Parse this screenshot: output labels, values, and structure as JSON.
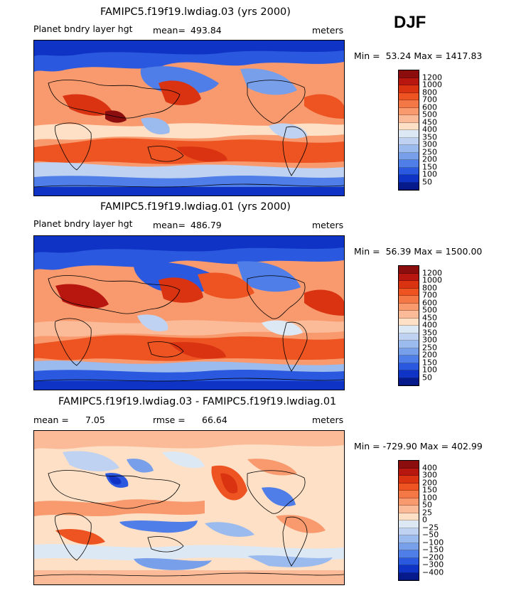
{
  "season": "DJF",
  "panels": [
    {
      "title": "FAMIPC5.f19f19.lwdiag.03 (yrs 2000)",
      "variable": "Planet bndry layer hgt",
      "stat_label": "mean=",
      "stat_value": "493.84",
      "units": "meters",
      "min_label": "Min =",
      "min_value": "53.24",
      "max_label": "Max =",
      "max_value": "1417.83",
      "legend": {
        "labels": [
          "1200",
          "1000",
          "800",
          "700",
          "600",
          "500",
          "450",
          "400",
          "350",
          "300",
          "250",
          "200",
          "150",
          "100",
          "50"
        ],
        "colors": [
          "#8c0d0d",
          "#b8170f",
          "#d93311",
          "#ed5422",
          "#f47746",
          "#f89a6e",
          "#fbbb98",
          "#fde0c6",
          "#dde8f5",
          "#bfd2f1",
          "#9bbaee",
          "#779fea",
          "#4f7ee8",
          "#2a58de",
          "#0f33c4",
          "#061a8c"
        ]
      }
    },
    {
      "title": "FAMIPC5.f19f19.lwdiag.01 (yrs 2000)",
      "variable": "Planet bndry layer hgt",
      "stat_label": "mean=",
      "stat_value": "486.79",
      "units": "meters",
      "min_label": "Min =",
      "min_value": "56.39",
      "max_label": "Max =",
      "max_value": "1500.00",
      "legend": {
        "labels": [
          "1200",
          "1000",
          "800",
          "700",
          "600",
          "500",
          "450",
          "400",
          "350",
          "300",
          "250",
          "200",
          "150",
          "100",
          "50"
        ],
        "colors": [
          "#8c0d0d",
          "#b8170f",
          "#d93311",
          "#ed5422",
          "#f47746",
          "#f89a6e",
          "#fbbb98",
          "#fde0c6",
          "#dde8f5",
          "#bfd2f1",
          "#9bbaee",
          "#779fea",
          "#4f7ee8",
          "#2a58de",
          "#0f33c4",
          "#061a8c"
        ]
      }
    },
    {
      "title": "FAMIPC5.f19f19.lwdiag.03 - FAMIPC5.f19f19.lwdiag.01",
      "mean_label": "mean =",
      "mean_value": "7.05",
      "rmse_label": "rmse =",
      "rmse_value": "66.64",
      "units": "meters",
      "min_label": "Min =",
      "min_value": "-729.90",
      "max_label": "Max =",
      "max_value": "402.99",
      "legend": {
        "labels": [
          "400",
          "300",
          "200",
          "150",
          "100",
          "50",
          "25",
          "0",
          "−25",
          "−50",
          "−100",
          "−150",
          "−200",
          "−300",
          "−400"
        ],
        "colors": [
          "#8c0d0d",
          "#b8170f",
          "#d93311",
          "#ed5422",
          "#f47746",
          "#f89a6e",
          "#fbbb98",
          "#fde0c6",
          "#dde8f5",
          "#bfd2f1",
          "#9bbaee",
          "#779fea",
          "#4f7ee8",
          "#2a58de",
          "#0f33c4",
          "#061a8c"
        ]
      }
    }
  ]
}
